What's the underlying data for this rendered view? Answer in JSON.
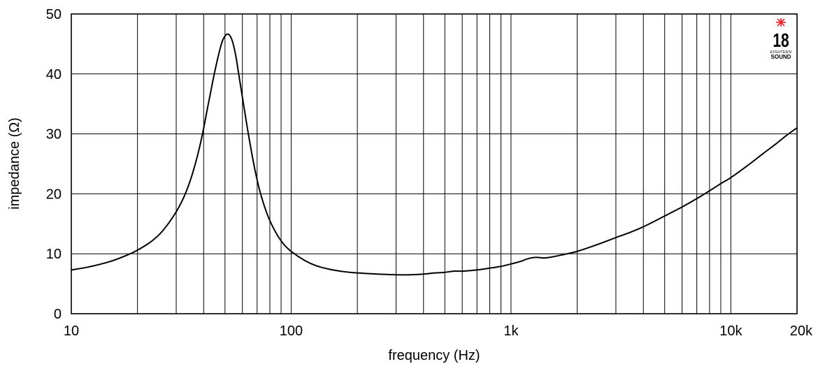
{
  "chart_data": {
    "type": "line",
    "title": "",
    "xlabel": "frequency (Hz)",
    "ylabel": "impedance (Ω)",
    "xscale": "log",
    "xlim": [
      10,
      20000
    ],
    "ylim": [
      0,
      50
    ],
    "grid": true,
    "x_ticks": [
      {
        "value": 10,
        "label": "10"
      },
      {
        "value": 100,
        "label": "100"
      },
      {
        "value": 1000,
        "label": "1k"
      },
      {
        "value": 10000,
        "label": "10k"
      },
      {
        "value": 20000,
        "label": "20k"
      }
    ],
    "y_ticks": [
      {
        "value": 0,
        "label": "0"
      },
      {
        "value": 10,
        "label": "10"
      },
      {
        "value": 20,
        "label": "20"
      },
      {
        "value": 30,
        "label": "30"
      },
      {
        "value": 40,
        "label": "40"
      },
      {
        "value": 50,
        "label": "50"
      }
    ],
    "x_minor_grid": [
      20,
      30,
      40,
      50,
      60,
      70,
      80,
      90,
      200,
      300,
      400,
      500,
      600,
      700,
      800,
      900,
      2000,
      3000,
      4000,
      5000,
      6000,
      7000,
      8000,
      9000
    ],
    "series": [
      {
        "x": [
          10,
          12,
          15,
          18,
          20,
          23,
          26,
          30,
          33,
          36,
          39,
          42,
          45,
          48,
          50,
          52,
          54,
          56,
          58,
          61,
          64,
          68,
          72,
          78,
          85,
          92,
          100,
          115,
          130,
          150,
          175,
          200,
          250,
          300,
          350,
          400,
          450,
          500,
          550,
          600,
          700,
          800,
          900,
          1000,
          1100,
          1200,
          1300,
          1400,
          1500,
          1700,
          2000,
          2500,
          3000,
          3500,
          4000,
          5000,
          6000,
          7000,
          8000,
          9000,
          10000,
          12000,
          14000,
          16000,
          18000,
          20000
        ],
        "y": [
          7.3,
          7.8,
          8.7,
          9.8,
          10.6,
          12.0,
          13.8,
          17.0,
          20.0,
          24.0,
          29.0,
          35.0,
          40.5,
          44.8,
          46.3,
          46.6,
          45.5,
          43.0,
          39.5,
          34.5,
          29.8,
          24.5,
          20.5,
          16.5,
          13.6,
          11.7,
          10.4,
          8.9,
          8.0,
          7.4,
          7.0,
          6.8,
          6.6,
          6.5,
          6.5,
          6.6,
          6.8,
          6.9,
          7.1,
          7.1,
          7.3,
          7.6,
          7.9,
          8.3,
          8.7,
          9.2,
          9.4,
          9.3,
          9.4,
          9.8,
          10.4,
          11.6,
          12.7,
          13.6,
          14.5,
          16.3,
          17.8,
          19.2,
          20.5,
          21.7,
          22.7,
          24.8,
          26.7,
          28.3,
          29.8,
          31.0
        ]
      }
    ]
  },
  "logo": {
    "number": "18",
    "line1": "EIGHTEEN",
    "line2": "SOUND",
    "star_color": "#e8202a"
  }
}
